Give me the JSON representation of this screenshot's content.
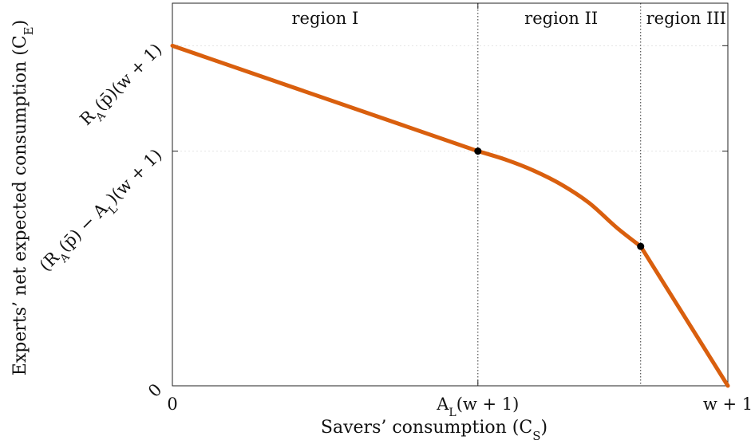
{
  "chart_data": {
    "type": "line",
    "xlabel": "Savers’ consumption (C_S)",
    "ylabel": "Experts’ net expected consumption (C_E)",
    "grid": "horizontal dotted at y ticks",
    "x_ticks": [
      {
        "value": 0.0,
        "label": "0"
      },
      {
        "value": 0.55,
        "label": "A_L(w + 1)"
      },
      {
        "value": 1.0,
        "label": "w + 1"
      }
    ],
    "y_ticks": [
      {
        "value": 0.0,
        "label": "0"
      },
      {
        "value": 0.69,
        "label": "(R_A(p̄) − A_L)(w + 1)"
      },
      {
        "value": 1.0,
        "label": "R_A(p̄)(w + 1)"
      }
    ],
    "xlim": [
      0,
      1.0
    ],
    "ylim": [
      0,
      1.125
    ],
    "series": [
      {
        "color": "#D95F0E",
        "x": [
          0,
          0.55,
          0.6,
          0.65,
          0.7,
          0.75,
          0.8,
          0.843,
          1.0
        ],
        "y": [
          1.0,
          0.69,
          0.665,
          0.633,
          0.592,
          0.538,
          0.465,
          0.41,
          0.0
        ]
      }
    ],
    "markers": [
      {
        "x": 0.55,
        "y": 0.69
      },
      {
        "x": 0.843,
        "y": 0.41
      }
    ],
    "vlines": [
      0.55,
      0.843
    ],
    "regions": [
      {
        "label": "region I",
        "x_center": 0.275
      },
      {
        "label": "region II",
        "x_center": 0.7
      },
      {
        "label": "region III",
        "x_center": 0.925
      }
    ]
  }
}
